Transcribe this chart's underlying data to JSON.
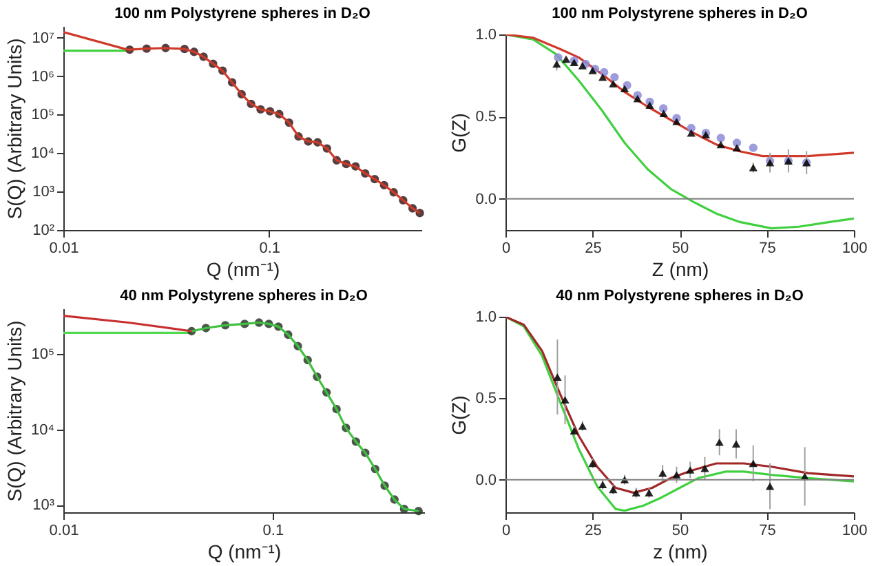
{
  "chart_data": [
    {
      "type": "line",
      "title": "100 nm Polystyrene spheres in D₂O",
      "xlabel": "Q (nm⁻¹)",
      "ylabel": "S(Q) (Arbitrary Units)",
      "log": "xy",
      "xlim": [
        0.01,
        0.55
      ],
      "xticks": [
        0.01,
        0.1
      ],
      "ylim": [
        100,
        20000000
      ],
      "yticks": [
        {
          "value": 100,
          "label": "10²"
        },
        {
          "value": 1000,
          "label": "10³"
        },
        {
          "value": 10000,
          "label": "10⁴"
        },
        {
          "value": 100000,
          "label": "10⁵"
        },
        {
          "value": 1000000,
          "label": "10⁶"
        },
        {
          "value": 10000000,
          "label": "10⁷"
        }
      ],
      "series": [
        {
          "type": "line",
          "color": "#40d040",
          "x": [
            0.01,
            0.015,
            0.0205
          ],
          "values": [
            4600000,
            4600000,
            4600000
          ]
        },
        {
          "type": "scatter",
          "marker": "circle",
          "color": "#3b1c1c",
          "x": [
            0.021,
            0.0254,
            0.0314,
            0.0388,
            0.0432,
            0.048,
            0.0534,
            0.0594,
            0.0661,
            0.0735,
            0.0817,
            0.0909,
            0.101,
            0.112,
            0.125,
            0.139,
            0.155,
            0.172,
            0.191,
            0.213,
            0.237,
            0.263,
            0.293,
            0.326,
            0.362,
            0.403,
            0.448,
            0.498,
            0.54
          ],
          "values": [
            4900000,
            5200000,
            5400000,
            5100000,
            4300000,
            3200000,
            2100000,
            1390000,
            690000,
            340000,
            190000,
            137000,
            122000,
            103000,
            62000,
            27000,
            20000,
            19000,
            13200,
            6500,
            5200,
            4500,
            2960,
            2100,
            1460,
            955,
            592,
            366,
            276
          ]
        },
        {
          "type": "line",
          "color": "#d03a2a",
          "x": [
            0.01,
            0.0205,
            0.021,
            0.0254,
            0.0314,
            0.0388,
            0.0432,
            0.048,
            0.0534,
            0.0594,
            0.0661,
            0.0735,
            0.0817,
            0.0909,
            0.101,
            0.112,
            0.125,
            0.139,
            0.155,
            0.172,
            0.191,
            0.213,
            0.237,
            0.263,
            0.293,
            0.326,
            0.362,
            0.403,
            0.448,
            0.498,
            0.54
          ],
          "values": [
            14000000,
            4900000,
            4900000,
            5200000,
            5400000,
            5100000,
            4300000,
            3200000,
            2100000,
            1390000,
            690000,
            340000,
            190000,
            137000,
            122000,
            103000,
            62000,
            27000,
            20000,
            19000,
            13200,
            6500,
            5200,
            4500,
            2960,
            2100,
            1460,
            955,
            592,
            366,
            276
          ]
        }
      ]
    },
    {
      "type": "line",
      "title": "100 nm Polystyrene spheres in D₂O",
      "xlabel": "Z (nm)",
      "ylabel": "G(Z)",
      "xlim": [
        0,
        100
      ],
      "xticks": [
        0,
        25,
        50,
        75,
        100
      ],
      "ylim": [
        -0.19,
        1.0
      ],
      "yticks": [
        {
          "value": 0,
          "label": "0.0"
        },
        {
          "value": 0.5,
          "label": "0.5"
        },
        {
          "value": 1,
          "label": "1.0"
        }
      ],
      "ref_lines": [
        {
          "axis": "y",
          "value": 0,
          "color": "#808080"
        }
      ],
      "series": [
        {
          "type": "line",
          "color": "#40d040",
          "x": [
            0,
            7.9,
            14.5,
            21,
            27.6,
            34.2,
            40.8,
            47.4,
            54,
            60.5,
            67,
            76.3,
            84.2,
            93.4,
            100
          ],
          "values": [
            1.0,
            0.97,
            0.88,
            0.72,
            0.54,
            0.34,
            0.18,
            0.06,
            -0.02,
            -0.09,
            -0.14,
            -0.18,
            -0.17,
            -0.14,
            -0.12
          ]
        },
        {
          "type": "line",
          "color": "#d03a2a",
          "x": [
            0,
            7.9,
            15.8,
            21,
            27.6,
            34.2,
            40.8,
            47.4,
            54,
            60.5,
            67,
            73.7,
            80.3,
            86.8,
            100
          ],
          "values": [
            1.0,
            0.98,
            0.91,
            0.86,
            0.76,
            0.65,
            0.56,
            0.48,
            0.4,
            0.33,
            0.29,
            0.26,
            0.26,
            0.26,
            0.28
          ]
        },
        {
          "type": "scatter",
          "marker": "circle",
          "color": "#8c8cd8",
          "x": [
            15.1,
            19.7,
            23.0,
            25.7,
            28.3,
            31.3,
            34.9,
            37.9,
            41.4,
            45.3,
            49.1,
            53.3,
            57.5,
            61.8,
            66.4,
            71.1,
            75.9,
            81.2,
            86.4
          ],
          "values": [
            0.86,
            0.84,
            0.82,
            0.79,
            0.77,
            0.74,
            0.69,
            0.63,
            0.59,
            0.55,
            0.49,
            0.43,
            0.4,
            0.37,
            0.34,
            0.31,
            0.23,
            0.23,
            0.22
          ]
        },
        {
          "type": "scatter",
          "marker": "triangle",
          "color": "#000000",
          "x": [
            14.7,
            17.4,
            19.7,
            22.1,
            25.0,
            27.9,
            30.9,
            34.2,
            37.9,
            41.4,
            45.4,
            49.1,
            53.3,
            57.5,
            61.8,
            66.4,
            71.1,
            75.9,
            81.2,
            86.4
          ],
          "values": [
            0.82,
            0.85,
            0.83,
            0.81,
            0.78,
            0.74,
            0.7,
            0.67,
            0.61,
            0.57,
            0.52,
            0.47,
            0.4,
            0.39,
            0.33,
            0.31,
            0.19,
            0.22,
            0.23,
            0.22
          ],
          "errors": [
            0.04,
            null,
            null,
            null,
            null,
            null,
            null,
            null,
            null,
            null,
            null,
            null,
            null,
            null,
            null,
            null,
            0.03,
            0.06,
            0.07,
            0.07
          ]
        }
      ]
    },
    {
      "type": "line",
      "title": "40 nm Polystyrene spheres in D₂O",
      "xlabel": "Q (nm⁻¹)",
      "ylabel": "S(Q) (Arbitrary Units)",
      "log": "xy",
      "xlim": [
        0.01,
        0.53
      ],
      "xticks": [
        0.01,
        0.1
      ],
      "ylim": [
        800,
        400000
      ],
      "yticks": [
        {
          "value": 1000,
          "label": "10³"
        },
        {
          "value": 10000,
          "label": "10⁴"
        },
        {
          "value": 100000,
          "label": "10⁵"
        }
      ],
      "series": [
        {
          "type": "line",
          "color": "#50d850",
          "x": [
            0.01,
            0.02,
            0.041
          ],
          "values": [
            190000,
            190000,
            190000
          ]
        },
        {
          "type": "scatter",
          "marker": "circle",
          "color": "#2c3a2a",
          "x": [
            0.041,
            0.048,
            0.0594,
            0.0735,
            0.0861,
            0.0959,
            0.1066,
            0.1186,
            0.132,
            0.147,
            0.163,
            0.181,
            0.202,
            0.224,
            0.25,
            0.277,
            0.309,
            0.343,
            0.382,
            0.425,
            0.498
          ],
          "values": [
            200000,
            220000,
            240000,
            250000,
            260000,
            250000,
            230000,
            180000,
            127000,
            83000,
            50000,
            31000,
            18600,
            10500,
            6900,
            4900,
            3000,
            1800,
            1180,
            885,
            830
          ]
        },
        {
          "type": "line",
          "color": "#c83030",
          "x": [
            0.01,
            0.0205,
            0.041
          ],
          "values": [
            320000,
            260000,
            200000
          ]
        },
        {
          "type": "line",
          "color": "#40c040",
          "x": [
            0.041,
            0.048,
            0.0594,
            0.0735,
            0.0861,
            0.0959,
            0.1066,
            0.1186,
            0.132,
            0.147,
            0.163,
            0.181,
            0.202,
            0.224,
            0.25,
            0.277,
            0.309,
            0.343,
            0.382,
            0.425,
            0.498
          ],
          "values": [
            200000,
            220000,
            240000,
            250000,
            260000,
            250000,
            230000,
            180000,
            127000,
            83000,
            50000,
            31000,
            18600,
            10500,
            6900,
            4900,
            3000,
            1800,
            1180,
            885,
            830
          ]
        }
      ]
    },
    {
      "type": "line",
      "title": "40 nm Polystyrene spheres in D₂O",
      "xlabel": "z (nm)",
      "ylabel": "G(Z)",
      "xlim": [
        0,
        100
      ],
      "xticks": [
        0,
        25,
        50,
        75,
        100
      ],
      "ylim": [
        -0.2,
        1.0
      ],
      "yticks": [
        {
          "value": 0,
          "label": "0.0"
        },
        {
          "value": 0.5,
          "label": "0.5"
        },
        {
          "value": 1,
          "label": "1.0"
        }
      ],
      "ref_lines": [
        {
          "axis": "y",
          "value": 0,
          "color": "#808080"
        }
      ],
      "series": [
        {
          "type": "line",
          "color": "#40d040",
          "x": [
            0,
            5.3,
            10.5,
            15.8,
            21,
            26.3,
            31.6,
            34.2,
            39.5,
            44.7,
            50,
            55.3,
            63.2,
            68.4,
            76.3,
            86.8,
            100
          ],
          "values": [
            1.0,
            0.94,
            0.76,
            0.47,
            0.19,
            -0.04,
            -0.18,
            -0.19,
            -0.16,
            -0.11,
            -0.05,
            0.01,
            0.05,
            0.05,
            0.03,
            0.01,
            -0.01
          ]
        },
        {
          "type": "line",
          "color": "#a02828",
          "x": [
            0,
            5.3,
            10.5,
            15.8,
            21,
            26.3,
            31.6,
            36.8,
            42.1,
            47.4,
            54,
            60.5,
            68.4,
            76.3,
            86.8,
            100
          ],
          "values": [
            1.0,
            0.95,
            0.79,
            0.52,
            0.27,
            0.08,
            -0.05,
            -0.08,
            -0.05,
            0.01,
            0.06,
            0.1,
            0.1,
            0.08,
            0.04,
            0.02
          ]
        },
        {
          "type": "scatter",
          "marker": "triangle",
          "color": "#000000",
          "x": [
            14.9,
            17.1,
            19.7,
            22.1,
            25.0,
            27.9,
            30.9,
            34.2,
            37.5,
            41.2,
            45.1,
            49.1,
            53.0,
            57.2,
            61.4,
            66.2,
            71.1,
            75.9,
            85.9
          ],
          "values": [
            0.63,
            0.49,
            0.3,
            0.33,
            0.1,
            -0.03,
            -0.06,
            0.0,
            -0.08,
            -0.08,
            0.04,
            0.03,
            0.06,
            0.07,
            0.23,
            0.22,
            0.1,
            -0.04,
            0.02
          ],
          "errors": [
            0.23,
            0.15,
            0.03,
            0.03,
            0.03,
            0.03,
            0.03,
            0.03,
            0.03,
            0.03,
            0.05,
            0.05,
            0.05,
            0.07,
            0.08,
            0.09,
            0.11,
            0.14,
            0.18
          ]
        }
      ]
    }
  ]
}
